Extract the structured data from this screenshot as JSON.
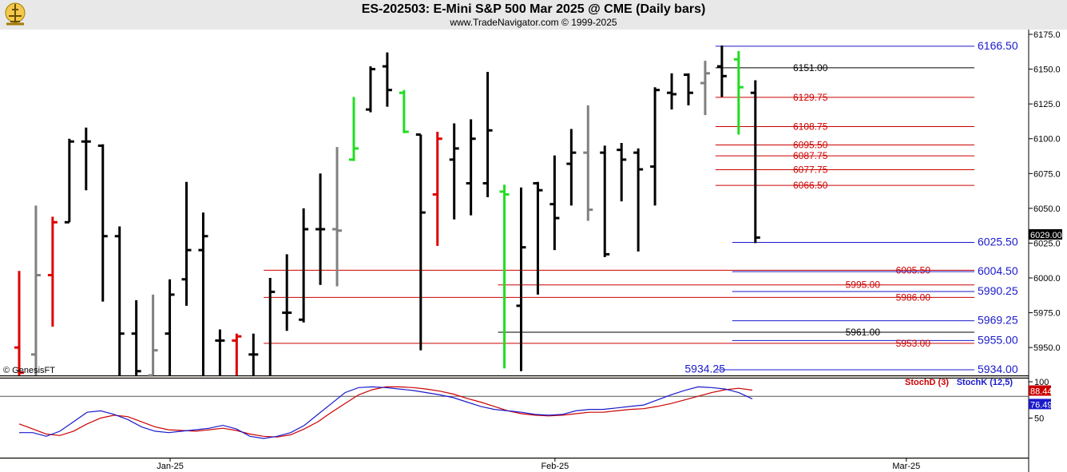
{
  "title": "ES-202503:  E-Mini S&P 500 Mar 2025 @ CME  (Daily bars)",
  "subtitle": "www.TradeNavigator.com © 1999-2025",
  "watermark": "© GenesisFT",
  "chart_data": {
    "type": "ohlc",
    "price_axis": {
      "min": 5930,
      "max": 6175,
      "ticks": [
        5950,
        5975,
        6000,
        6025,
        6050,
        6075,
        6100,
        6125,
        6150,
        6175
      ]
    },
    "x_labels": [
      {
        "label": "Jan-25",
        "index": 9.5
      },
      {
        "label": "Feb-25",
        "index": 32.5
      },
      {
        "label": "Mar-25",
        "index": 53.5
      }
    ],
    "last_price": "6029.00",
    "bars": [
      {
        "o": 5950,
        "h": 6005,
        "l": 5925,
        "c": 5932,
        "color": "red"
      },
      {
        "o": 5945,
        "h": 6052,
        "l": 5925,
        "c": 6002,
        "color": "gray"
      },
      {
        "o": 6002,
        "h": 6044,
        "l": 5965,
        "c": 6040,
        "color": "red"
      },
      {
        "o": 6040,
        "h": 6100,
        "l": 6040,
        "c": 6098,
        "color": "black"
      },
      {
        "o": 6098,
        "h": 6108,
        "l": 6063,
        "c": 6098,
        "color": "black"
      },
      {
        "o": 6095,
        "h": 6096,
        "l": 5983,
        "c": 6030,
        "color": "black"
      },
      {
        "o": 6030,
        "h": 6037,
        "l": 5920,
        "c": 5960,
        "color": "black"
      },
      {
        "o": 5960,
        "h": 5984,
        "l": 5920,
        "c": 5933,
        "color": "black"
      },
      {
        "o": 5930,
        "h": 5988,
        "l": 5925,
        "c": 5948,
        "color": "gray"
      },
      {
        "o": 5960,
        "h": 5999,
        "l": 5925,
        "c": 5988,
        "color": "black"
      },
      {
        "o": 5999,
        "h": 6069,
        "l": 5980,
        "c": 6020,
        "color": "black"
      },
      {
        "o": 6020,
        "h": 6047,
        "l": 5925,
        "c": 6030,
        "color": "black"
      },
      {
        "o": 5955,
        "h": 5963,
        "l": 5925,
        "c": 5955,
        "color": "black"
      },
      {
        "o": 5955,
        "h": 5960,
        "l": 5920,
        "c": 5958,
        "color": "red"
      },
      {
        "o": 5945,
        "h": 5960,
        "l": 5925,
        "c": 5945,
        "color": "black"
      },
      {
        "o": 5920,
        "h": 6000,
        "l": 5920,
        "c": 5990,
        "color": "black"
      },
      {
        "o": 5975,
        "h": 6017,
        "l": 5962,
        "c": 5975,
        "color": "black"
      },
      {
        "o": 5970,
        "h": 6050,
        "l": 5968,
        "c": 6035,
        "color": "black"
      },
      {
        "o": 6035,
        "h": 6075,
        "l": 5995,
        "c": 6035,
        "color": "black"
      },
      {
        "o": 6035,
        "h": 6094,
        "l": 5994,
        "c": 6034,
        "color": "gray"
      },
      {
        "o": 6085,
        "h": 6130,
        "l": 6084,
        "c": 6093,
        "color": "green"
      },
      {
        "o": 6121,
        "h": 6152,
        "l": 6119,
        "c": 6150,
        "color": "black"
      },
      {
        "o": 6152,
        "h": 6162,
        "l": 6123,
        "c": 6135,
        "color": "black"
      },
      {
        "o": 6133,
        "h": 6135,
        "l": 6104,
        "c": 6105,
        "color": "green"
      },
      {
        "o": 6103,
        "h": 6103,
        "l": 5948,
        "c": 6047,
        "color": "black"
      },
      {
        "o": 6060,
        "h": 6105,
        "l": 6023,
        "c": 6100,
        "color": "red"
      },
      {
        "o": 6085,
        "h": 6111,
        "l": 6042,
        "c": 6093,
        "color": "black"
      },
      {
        "o": 6068,
        "h": 6114,
        "l": 6045,
        "c": 6100,
        "color": "black"
      },
      {
        "o": 6068,
        "h": 6148,
        "l": 6058,
        "c": 6106,
        "color": "black"
      },
      {
        "o": 6062,
        "h": 6067,
        "l": 5935,
        "c": 6060,
        "color": "green"
      },
      {
        "o": 5980,
        "h": 6065,
        "l": 5933,
        "c": 6022,
        "color": "black"
      },
      {
        "o": 6068,
        "h": 6069,
        "l": 5988,
        "c": 6063,
        "color": "black"
      },
      {
        "o": 6053,
        "h": 6088,
        "l": 6020,
        "c": 6043,
        "color": "black"
      },
      {
        "o": 6082,
        "h": 6107,
        "l": 6052,
        "c": 6090,
        "color": "black"
      },
      {
        "o": 6090,
        "h": 6124,
        "l": 6041,
        "c": 6049,
        "color": "gray"
      },
      {
        "o": 6090,
        "h": 6095,
        "l": 6015,
        "c": 6017,
        "color": "black"
      },
      {
        "o": 6092,
        "h": 6097,
        "l": 6055,
        "c": 6085,
        "color": "black"
      },
      {
        "o": 6090,
        "h": 6093,
        "l": 6019,
        "c": 6078,
        "color": "black"
      },
      {
        "o": 6080,
        "h": 6137,
        "l": 6052,
        "c": 6135,
        "color": "black"
      },
      {
        "o": 6133,
        "h": 6147,
        "l": 6121,
        "c": 6132,
        "color": "black"
      },
      {
        "o": 6146,
        "h": 6147,
        "l": 6124,
        "c": 6133,
        "color": "black"
      },
      {
        "o": 6140,
        "h": 6156,
        "l": 6117,
        "c": 6147,
        "color": "gray"
      },
      {
        "o": 6152,
        "h": 6167,
        "l": 6130,
        "c": 6145,
        "color": "black"
      },
      {
        "o": 6157,
        "h": 6163,
        "l": 6103,
        "c": 6137,
        "color": "green"
      },
      {
        "o": 6133,
        "h": 6142,
        "l": 6025,
        "c": 6029,
        "color": "black"
      }
    ],
    "levels": [
      {
        "price": 6166.5,
        "label": "6166.50",
        "color": "#1a1acc",
        "start": 42,
        "label_side": "right"
      },
      {
        "price": 6151.0,
        "label": "6151.00",
        "color": "#000000",
        "start": 42,
        "label_side": "mid"
      },
      {
        "price": 6129.75,
        "label": "6129.75",
        "color": "#cc0000",
        "start": 42,
        "label_side": "mid"
      },
      {
        "price": 6108.75,
        "label": "6108.75",
        "color": "#cc0000",
        "start": 42,
        "label_side": "mid"
      },
      {
        "price": 6095.5,
        "label": "6095.50",
        "color": "#cc0000",
        "start": 42,
        "label_side": "mid"
      },
      {
        "price": 6087.75,
        "label": "6087.75",
        "color": "#cc0000",
        "start": 42,
        "label_side": "mid"
      },
      {
        "price": 6077.75,
        "label": "6077.75",
        "color": "#cc0000",
        "start": 42,
        "label_side": "mid"
      },
      {
        "price": 6066.5,
        "label": "6066.50",
        "color": "#cc0000",
        "start": 42,
        "label_side": "mid"
      },
      {
        "price": 6025.5,
        "label": "6025.50",
        "color": "#1a1acc",
        "start": 43,
        "label_side": "right"
      },
      {
        "price": 6005.5,
        "label": "6005.50",
        "color": "#cc0000",
        "start": 15,
        "label_side": "far"
      },
      {
        "price": 6004.5,
        "label": "6004.50",
        "color": "#1a1acc",
        "start": 43,
        "label_side": "right"
      },
      {
        "price": 5995.0,
        "label": "5995.00",
        "color": "#cc0000",
        "start": 29,
        "label_side": "mid2"
      },
      {
        "price": 5990.25,
        "label": "5990.25",
        "color": "#1a1acc",
        "start": 43,
        "label_side": "right"
      },
      {
        "price": 5986.0,
        "label": "5986.00",
        "color": "#cc0000",
        "start": 15,
        "label_side": "far"
      },
      {
        "price": 5969.25,
        "label": "5969.25",
        "color": "#1a1acc",
        "start": 43,
        "label_side": "right"
      },
      {
        "price": 5961.0,
        "label": "5961.00",
        "color": "#000000",
        "start": 29,
        "label_side": "mid2"
      },
      {
        "price": 5955.0,
        "label": "5955.00",
        "color": "#1a1acc",
        "start": 43,
        "label_side": "right"
      },
      {
        "price": 5953.0,
        "label": "5953.00",
        "color": "#cc0000",
        "start": 15,
        "label_side": "far"
      },
      {
        "price": 5934.0,
        "label": "5934.00",
        "color": "#1a1acc",
        "start": 42,
        "label_side": "right"
      }
    ],
    "extra_label": {
      "text": "5934.25",
      "color": "#1a1acc"
    },
    "stochastic": {
      "range": [
        0,
        100
      ],
      "ticks": [
        50,
        100
      ],
      "reference_level": 80,
      "stochD": {
        "name": "StochD (3)",
        "color": "#cc0000",
        "last": "88.44",
        "values": [
          42,
          35,
          28,
          26,
          32,
          42,
          50,
          54,
          52,
          45,
          38,
          34,
          33,
          32,
          34,
          36,
          33,
          28,
          25,
          24,
          27,
          35,
          45,
          58,
          70,
          82,
          89,
          93,
          93,
          92,
          90,
          87,
          83,
          77,
          72,
          66,
          60,
          56,
          54,
          53,
          54,
          56,
          58,
          58,
          60,
          62,
          63,
          66,
          70,
          75,
          80,
          85,
          89,
          91,
          88.44
        ]
      },
      "stochK": {
        "name": "StochK (12,5)",
        "color": "#1a1acc",
        "last": "76.49",
        "values": [
          30,
          30,
          25,
          32,
          45,
          58,
          60,
          55,
          48,
          38,
          32,
          30,
          32,
          34,
          36,
          40,
          35,
          25,
          22,
          25,
          30,
          40,
          55,
          70,
          85,
          92,
          93,
          92,
          90,
          88,
          85,
          82,
          78,
          72,
          66,
          62,
          60,
          58,
          55,
          54,
          55,
          60,
          62,
          62,
          64,
          66,
          68,
          75,
          82,
          88,
          93,
          92,
          90,
          85,
          76.49
        ]
      }
    }
  }
}
